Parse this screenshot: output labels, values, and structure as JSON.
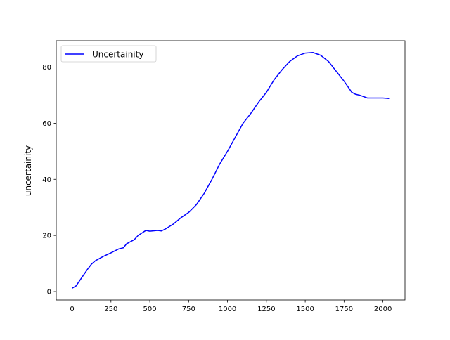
{
  "chart_data": {
    "type": "line",
    "ylabel": "uncertainity",
    "x": [
      0,
      25,
      50,
      75,
      100,
      125,
      150,
      200,
      250,
      300,
      330,
      350,
      400,
      425,
      475,
      500,
      550,
      575,
      600,
      650,
      700,
      750,
      800,
      850,
      900,
      950,
      1000,
      1050,
      1100,
      1150,
      1200,
      1250,
      1300,
      1350,
      1400,
      1450,
      1500,
      1550,
      1600,
      1650,
      1700,
      1750,
      1800,
      1825,
      1850,
      1900,
      1950,
      2000,
      2040
    ],
    "series": [
      {
        "name": "Uncertainity",
        "color": "#0000ff",
        "values": [
          1.2,
          2,
          4,
          6,
          8,
          9.8,
          11,
          12.5,
          13.8,
          15.2,
          15.6,
          17,
          18.5,
          20,
          21.8,
          21.5,
          21.8,
          21.6,
          22.3,
          24,
          26.3,
          28.2,
          31,
          35,
          40,
          45.5,
          50,
          55,
          60,
          63.5,
          67.5,
          71,
          75.5,
          79,
          82,
          84,
          85,
          85.2,
          84.2,
          82,
          78.5,
          75,
          71,
          70.3,
          70,
          69,
          69,
          69,
          68.8
        ]
      }
    ],
    "xlim": [
      -102,
      2142
    ],
    "ylim": [
      -3,
      89.4
    ],
    "xticks": [
      0,
      250,
      500,
      750,
      1000,
      1250,
      1500,
      1750,
      2000
    ],
    "yticks": [
      0,
      20,
      40,
      60,
      80
    ],
    "legend": "upper left"
  }
}
